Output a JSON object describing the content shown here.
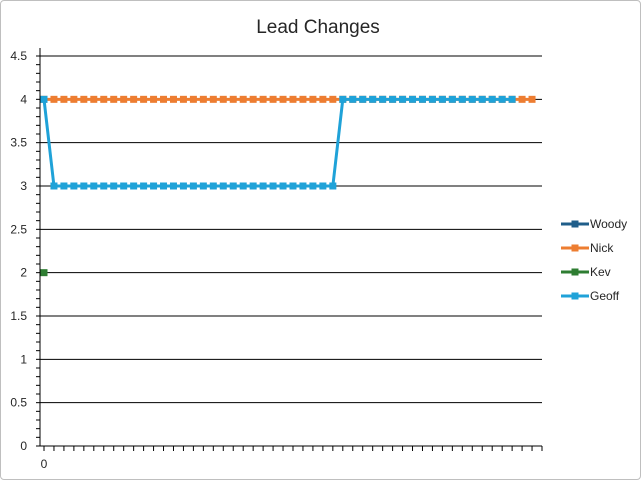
{
  "chart_data": {
    "type": "line",
    "title": "Lead Changes",
    "xlabel": "",
    "ylabel": "",
    "ylim": [
      0,
      4.5
    ],
    "y_ticks": [
      "0",
      "0.5",
      "1",
      "1.5",
      "2",
      "2.5",
      "3",
      "3.5",
      "4",
      "4.5"
    ],
    "x_tick_labels": [
      "0"
    ],
    "x_range": [
      0,
      50
    ],
    "grid": true,
    "legend_position": "right",
    "series": [
      {
        "name": "Woody",
        "color": "#1f5e8a",
        "points": []
      },
      {
        "name": "Nick",
        "color": "#ed7d31",
        "points": [
          [
            0,
            4
          ],
          [
            1,
            4
          ],
          [
            2,
            4
          ],
          [
            3,
            4
          ],
          [
            4,
            4
          ],
          [
            5,
            4
          ],
          [
            6,
            4
          ],
          [
            7,
            4
          ],
          [
            8,
            4
          ],
          [
            9,
            4
          ],
          [
            10,
            4
          ],
          [
            11,
            4
          ],
          [
            12,
            4
          ],
          [
            13,
            4
          ],
          [
            14,
            4
          ],
          [
            15,
            4
          ],
          [
            16,
            4
          ],
          [
            17,
            4
          ],
          [
            18,
            4
          ],
          [
            19,
            4
          ],
          [
            20,
            4
          ],
          [
            21,
            4
          ],
          [
            22,
            4
          ],
          [
            23,
            4
          ],
          [
            24,
            4
          ],
          [
            25,
            4
          ],
          [
            26,
            4
          ],
          [
            27,
            4
          ],
          [
            28,
            4
          ],
          [
            29,
            4
          ],
          [
            30,
            4
          ],
          [
            31,
            4
          ],
          [
            32,
            4
          ],
          [
            33,
            4
          ],
          [
            34,
            4
          ],
          [
            35,
            4
          ],
          [
            36,
            4
          ],
          [
            37,
            4
          ],
          [
            38,
            4
          ],
          [
            39,
            4
          ],
          [
            40,
            4
          ],
          [
            41,
            4
          ],
          [
            42,
            4
          ],
          [
            43,
            4
          ],
          [
            44,
            4
          ],
          [
            45,
            4
          ],
          [
            46,
            4
          ],
          [
            47,
            4
          ],
          [
            48,
            4
          ],
          [
            49,
            4
          ]
        ]
      },
      {
        "name": "Kev",
        "color": "#2e7d32",
        "points": [
          [
            0,
            2
          ]
        ]
      },
      {
        "name": "Geoff",
        "color": "#1fa2d8",
        "points": [
          [
            0,
            4
          ],
          [
            1,
            3
          ],
          [
            2,
            3
          ],
          [
            3,
            3
          ],
          [
            4,
            3
          ],
          [
            5,
            3
          ],
          [
            6,
            3
          ],
          [
            7,
            3
          ],
          [
            8,
            3
          ],
          [
            9,
            3
          ],
          [
            10,
            3
          ],
          [
            11,
            3
          ],
          [
            12,
            3
          ],
          [
            13,
            3
          ],
          [
            14,
            3
          ],
          [
            15,
            3
          ],
          [
            16,
            3
          ],
          [
            17,
            3
          ],
          [
            18,
            3
          ],
          [
            19,
            3
          ],
          [
            20,
            3
          ],
          [
            21,
            3
          ],
          [
            22,
            3
          ],
          [
            23,
            3
          ],
          [
            24,
            3
          ],
          [
            25,
            3
          ],
          [
            26,
            3
          ],
          [
            27,
            3
          ],
          [
            28,
            3
          ],
          [
            29,
            3
          ],
          [
            30,
            4
          ],
          [
            31,
            4
          ],
          [
            32,
            4
          ],
          [
            33,
            4
          ],
          [
            34,
            4
          ],
          [
            35,
            4
          ],
          [
            36,
            4
          ],
          [
            37,
            4
          ],
          [
            38,
            4
          ],
          [
            39,
            4
          ],
          [
            40,
            4
          ],
          [
            41,
            4
          ],
          [
            42,
            4
          ],
          [
            43,
            4
          ],
          [
            44,
            4
          ],
          [
            45,
            4
          ],
          [
            46,
            4
          ],
          [
            47,
            4
          ]
        ]
      }
    ]
  }
}
